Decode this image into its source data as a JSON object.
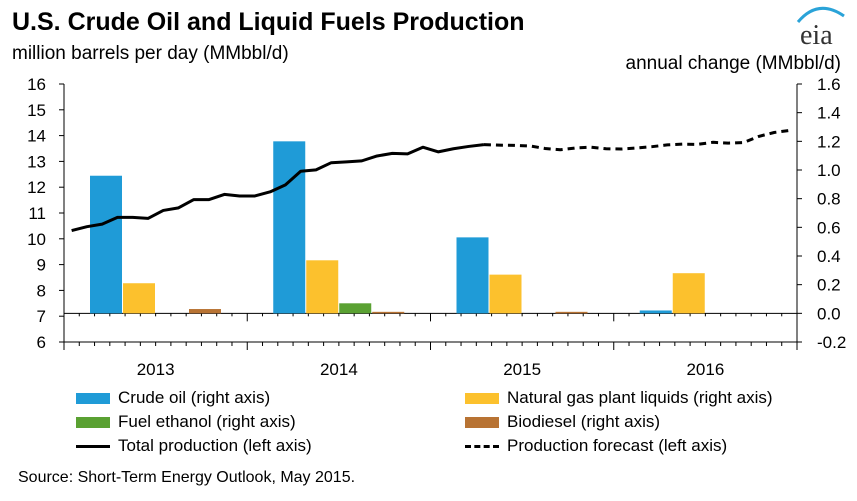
{
  "header": {
    "title": "U.S. Crude Oil and Liquid Fuels Production",
    "left_axis_label": "million barrels per day (MMbbl/d)",
    "right_axis_label": "annual change (MMbbl/d)",
    "logo_text": "eia"
  },
  "source": "Source: Short-Term Energy Outlook, May 2015.",
  "colors": {
    "crude_oil": "#1f9bd7",
    "ngpl": "#fcc12d",
    "ethanol": "#5aa132",
    "biodiesel": "#b87333",
    "line": "#000000",
    "logo_arc": "#2aa3d8"
  },
  "legend": [
    {
      "label": "Crude oil (right axis)",
      "type": "bar",
      "color": "#1f9bd7"
    },
    {
      "label": "Natural gas plant liquids (right axis)",
      "type": "bar",
      "color": "#fcc12d"
    },
    {
      "label": "Fuel ethanol (right axis)",
      "type": "bar",
      "color": "#5aa132"
    },
    {
      "label": "Biodiesel (right axis)",
      "type": "bar",
      "color": "#b87333"
    },
    {
      "label": "Total production (left axis)",
      "type": "line"
    },
    {
      "label": "Production forecast (left axis)",
      "type": "dashed"
    }
  ],
  "chart_data": {
    "type": "bar+line",
    "title": "U.S. Crude Oil and Liquid Fuels Production",
    "categories": [
      "2013",
      "2014",
      "2015",
      "2016"
    ],
    "left_axis": {
      "label": "million barrels per day (MMbbl/d)",
      "min": 6,
      "max": 16,
      "ticks": [
        "6",
        "7",
        "8",
        "9",
        "10",
        "11",
        "12",
        "13",
        "14",
        "15",
        "16"
      ]
    },
    "right_axis": {
      "label": "annual change (MMbbl/d)",
      "min": -0.2,
      "max": 1.6,
      "ticks": [
        "-0.2",
        "0.0",
        "0.2",
        "0.4",
        "0.6",
        "0.8",
        "1.0",
        "1.2",
        "1.4",
        "1.6"
      ]
    },
    "bar_series": [
      {
        "name": "Crude oil (right axis)",
        "values": [
          0.96,
          1.2,
          0.53,
          0.02
        ]
      },
      {
        "name": "Natural gas plant liquids (right axis)",
        "values": [
          0.21,
          0.37,
          0.27,
          0.28
        ]
      },
      {
        "name": "Fuel ethanol (right axis)",
        "values": [
          0.0,
          0.07,
          0.0,
          0.0
        ]
      },
      {
        "name": "Biodiesel (right axis)",
        "values": [
          0.03,
          0.01,
          0.01,
          0.0
        ]
      }
    ],
    "line_series": [
      {
        "name": "Total production (left axis)",
        "style": "solid",
        "values": [
          10.32,
          10.47,
          10.57,
          10.83,
          10.83,
          10.79,
          11.1,
          11.2,
          11.52,
          11.52,
          11.72,
          11.66,
          11.66,
          11.82,
          12.09,
          12.62,
          12.67,
          12.95,
          12.98,
          13.02,
          13.21,
          13.31,
          13.29,
          13.55,
          13.37,
          13.49,
          13.58,
          13.65
        ]
      },
      {
        "name": "Production forecast (left axis)",
        "style": "dashed",
        "values": [
          13.65,
          13.63,
          13.62,
          13.6,
          13.5,
          13.45,
          13.52,
          13.55,
          13.49,
          13.48,
          13.52,
          13.57,
          13.64,
          13.67,
          13.66,
          13.74,
          13.71,
          13.73,
          13.97,
          14.12,
          14.2
        ]
      }
    ]
  }
}
